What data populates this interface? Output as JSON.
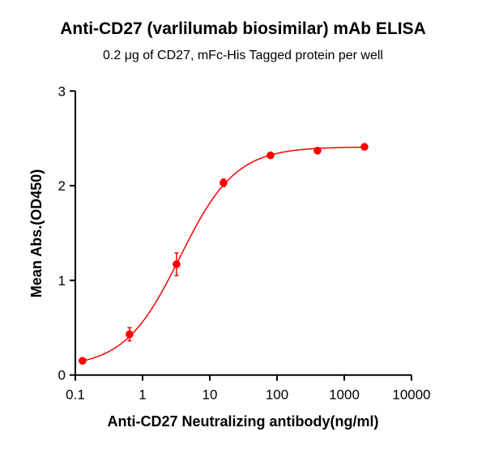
{
  "chart_data": {
    "type": "scatter",
    "title": "Anti-CD27 (varlilumab biosimilar) mAb ELISA",
    "subtitle": "0.2 μg of CD27, mFc-His Tagged protein per well",
    "xlabel": "Anti-CD27 Neutralizing antibody(ng/ml)",
    "ylabel": "Mean Abs.(OD450)",
    "xscale": "log",
    "xlim": [
      0.1,
      10000
    ],
    "ylim": [
      0,
      3
    ],
    "xticks": [
      "0.1",
      "1",
      "10",
      "100",
      "1000",
      "10000"
    ],
    "yticks": [
      "0",
      "1",
      "2",
      "3"
    ],
    "grid": false,
    "color": "#ff0000",
    "fit_curve": "sigmoidal",
    "points": [
      {
        "x": 0.128,
        "y": 0.15,
        "err": 0.02
      },
      {
        "x": 0.64,
        "y": 0.43,
        "err": 0.07
      },
      {
        "x": 3.2,
        "y": 1.17,
        "err": 0.12
      },
      {
        "x": 16,
        "y": 2.03,
        "err": 0.04
      },
      {
        "x": 80,
        "y": 2.32,
        "err": 0.02
      },
      {
        "x": 400,
        "y": 2.37,
        "err": 0.02
      },
      {
        "x": 2000,
        "y": 2.41,
        "err": 0.02
      }
    ]
  }
}
